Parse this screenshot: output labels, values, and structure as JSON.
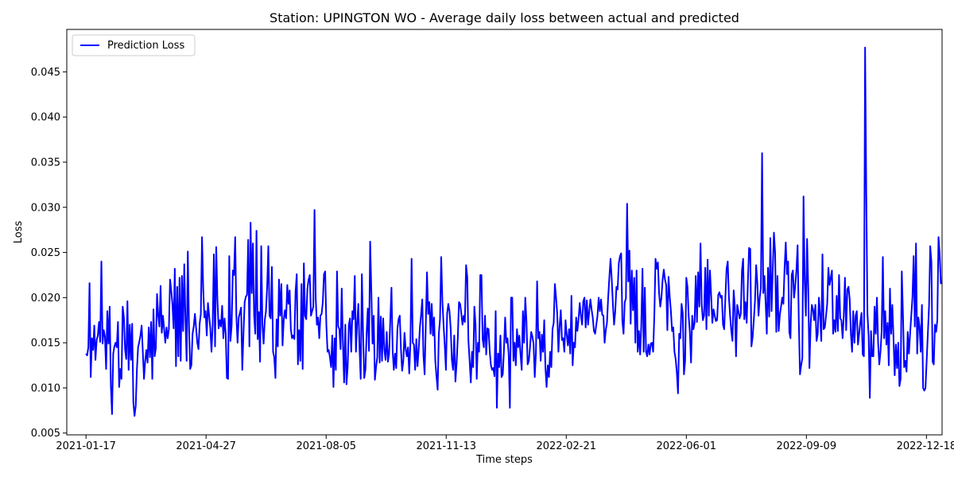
{
  "chart_data": {
    "type": "line",
    "title": "Station: UPINGTON WO - Average daily loss between actual and predicted",
    "xlabel": "Time steps",
    "ylabel": "Loss",
    "xlim": [
      "2021-01-01",
      "2022-12-31"
    ],
    "ylim": [
      0.0048,
      0.0497
    ],
    "x_ticks": [
      "2021-01-17",
      "2021-04-27",
      "2021-08-05",
      "2021-11-13",
      "2022-02-21",
      "2022-06-01",
      "2022-09-09",
      "2022-12-18"
    ],
    "y_ticks": [
      "0.005",
      "0.010",
      "0.015",
      "0.020",
      "0.025",
      "0.030",
      "0.035",
      "0.040",
      "0.045"
    ],
    "legend_position": "upper-left",
    "grid": false,
    "series": [
      {
        "name": "Prediction Loss",
        "color": "#0000ff",
        "x_start": "2021-01-17",
        "x_step_days": 1,
        "values": [
          0.0138,
          0.0136,
          0.0145,
          0.0216,
          0.0112,
          0.0155,
          0.0142,
          0.0169,
          0.0131,
          0.0153,
          0.0158,
          0.0173,
          0.0151,
          0.024,
          0.0149,
          0.0164,
          0.0157,
          0.0121,
          0.0185,
          0.0149,
          0.019,
          0.0103,
          0.0071,
          0.0138,
          0.0146,
          0.015,
          0.0145,
          0.0173,
          0.0101,
          0.0121,
          0.011,
          0.019,
          0.0178,
          0.0143,
          0.0132,
          0.0196,
          0.012,
          0.017,
          0.0131,
          0.0171,
          0.0084,
          0.0069,
          0.008,
          0.012,
          0.0145,
          0.0151,
          0.0158,
          0.0169,
          0.014,
          0.011,
          0.013,
          0.0142,
          0.0128,
          0.0167,
          0.0134,
          0.0173,
          0.011,
          0.0187,
          0.0135,
          0.0144,
          0.0204,
          0.018,
          0.0168,
          0.0213,
          0.0161,
          0.018,
          0.0165,
          0.015,
          0.0167,
          0.0155,
          0.0165,
          0.022,
          0.0208,
          0.0193,
          0.0166,
          0.0232,
          0.0124,
          0.0212,
          0.0135,
          0.0222,
          0.013,
          0.0224,
          0.0163,
          0.0237,
          0.0175,
          0.013,
          0.0251,
          0.0168,
          0.0121,
          0.0125,
          0.016,
          0.0168,
          0.0182,
          0.0166,
          0.015,
          0.0143,
          0.0171,
          0.0182,
          0.0267,
          0.021,
          0.0178,
          0.0185,
          0.0158,
          0.0194,
          0.018,
          0.0166,
          0.014,
          0.017,
          0.0248,
          0.0146,
          0.0256,
          0.0198,
          0.0166,
          0.0175,
          0.0168,
          0.0191,
          0.0155,
          0.0177,
          0.016,
          0.0111,
          0.011,
          0.0246,
          0.0152,
          0.0169,
          0.023,
          0.0225,
          0.0267,
          0.018,
          0.015,
          0.0178,
          0.0183,
          0.0189,
          0.012,
          0.016,
          0.0195,
          0.0201,
          0.0203,
          0.0264,
          0.0146,
          0.0283,
          0.0205,
          0.026,
          0.018,
          0.016,
          0.0274,
          0.0154,
          0.0184,
          0.0129,
          0.0257,
          0.017,
          0.0149,
          0.0175,
          0.0185,
          0.0212,
          0.0257,
          0.018,
          0.0177,
          0.0234,
          0.014,
          0.0134,
          0.0111,
          0.0176,
          0.0146,
          0.022,
          0.018,
          0.0215,
          0.0147,
          0.0175,
          0.0186,
          0.0177,
          0.0214,
          0.0193,
          0.0208,
          0.0165,
          0.0155,
          0.0158,
          0.0154,
          0.0207,
          0.0226,
          0.0126,
          0.0164,
          0.013,
          0.0215,
          0.0121,
          0.0238,
          0.018,
          0.0176,
          0.021,
          0.022,
          0.0225,
          0.018,
          0.0185,
          0.019,
          0.0297,
          0.02,
          0.017,
          0.0178,
          0.0155,
          0.018,
          0.0182,
          0.0195,
          0.0226,
          0.0229,
          0.017,
          0.014,
          0.0142,
          0.0134,
          0.0123,
          0.0158,
          0.0101,
          0.0155,
          0.012,
          0.0229,
          0.0168,
          0.0165,
          0.0143,
          0.021,
          0.015,
          0.0106,
          0.017,
          0.0104,
          0.0123,
          0.017,
          0.0177,
          0.014,
          0.0185,
          0.0176,
          0.0224,
          0.014,
          0.0172,
          0.0193,
          0.0144,
          0.011,
          0.0226,
          0.016,
          0.0111,
          0.012,
          0.016,
          0.0188,
          0.0141,
          0.0262,
          0.0207,
          0.0149,
          0.018,
          0.0109,
          0.0123,
          0.0134,
          0.02,
          0.0128,
          0.0179,
          0.013,
          0.0177,
          0.0142,
          0.0131,
          0.0162,
          0.0129,
          0.0138,
          0.0175,
          0.0211,
          0.0141,
          0.012,
          0.0138,
          0.0122,
          0.0165,
          0.0176,
          0.018,
          0.0143,
          0.0119,
          0.013,
          0.0161,
          0.0143,
          0.0135,
          0.0145,
          0.0116,
          0.015,
          0.0243,
          0.015,
          0.0148,
          0.012,
          0.0154,
          0.0124,
          0.0143,
          0.0167,
          0.0181,
          0.0198,
          0.0136,
          0.0115,
          0.0171,
          0.0228,
          0.0182,
          0.0195,
          0.016,
          0.0193,
          0.0158,
          0.0178,
          0.013,
          0.0113,
          0.0098,
          0.016,
          0.0176,
          0.0245,
          0.0196,
          0.017,
          0.0147,
          0.012,
          0.0182,
          0.0193,
          0.0185,
          0.0166,
          0.0131,
          0.012,
          0.0158,
          0.0107,
          0.0127,
          0.0155,
          0.0195,
          0.0193,
          0.0182,
          0.017,
          0.018,
          0.0173,
          0.0236,
          0.0223,
          0.0152,
          0.013,
          0.0106,
          0.014,
          0.0123,
          0.019,
          0.017,
          0.011,
          0.015,
          0.014,
          0.0225,
          0.0225,
          0.0154,
          0.0145,
          0.018,
          0.0137,
          0.0166,
          0.0165,
          0.014,
          0.0125,
          0.012,
          0.0122,
          0.0113,
          0.0185,
          0.0078,
          0.0138,
          0.0123,
          0.0158,
          0.0112,
          0.0115,
          0.0142,
          0.0178,
          0.015,
          0.0155,
          0.0137,
          0.0078,
          0.02,
          0.02,
          0.013,
          0.015,
          0.0125,
          0.0165,
          0.0145,
          0.0158,
          0.0137,
          0.012,
          0.0185,
          0.015,
          0.02,
          0.0174,
          0.0126,
          0.013,
          0.0145,
          0.0162,
          0.0157,
          0.0149,
          0.0112,
          0.0139,
          0.0218,
          0.0155,
          0.0162,
          0.013,
          0.0159,
          0.014,
          0.0175,
          0.0123,
          0.0101,
          0.0125,
          0.0112,
          0.014,
          0.0123,
          0.0165,
          0.0172,
          0.0215,
          0.02,
          0.0182,
          0.014,
          0.0168,
          0.0186,
          0.0153,
          0.0155,
          0.014,
          0.0175,
          0.0159,
          0.0147,
          0.0165,
          0.0138,
          0.0202,
          0.0125,
          0.015,
          0.0145,
          0.0178,
          0.0163,
          0.0176,
          0.0194,
          0.018,
          0.017,
          0.0196,
          0.02,
          0.0167,
          0.0197,
          0.017,
          0.0185,
          0.0198,
          0.0187,
          0.0178,
          0.0163,
          0.016,
          0.017,
          0.018,
          0.02,
          0.0185,
          0.0198,
          0.0181,
          0.018,
          0.015,
          0.0164,
          0.0172,
          0.02,
          0.0222,
          0.0243,
          0.0221,
          0.0193,
          0.017,
          0.0185,
          0.0212,
          0.0209,
          0.0238,
          0.0246,
          0.0249,
          0.0174,
          0.016,
          0.0195,
          0.0199,
          0.0304,
          0.0218,
          0.0252,
          0.0171,
          0.023,
          0.0186,
          0.0222,
          0.015,
          0.023,
          0.014,
          0.0163,
          0.0137,
          0.017,
          0.0232,
          0.014,
          0.0211,
          0.014,
          0.0135,
          0.0148,
          0.0137,
          0.0149,
          0.015,
          0.014,
          0.018,
          0.0243,
          0.0232,
          0.0239,
          0.0205,
          0.019,
          0.02,
          0.022,
          0.0231,
          0.022,
          0.0214,
          0.0164,
          0.0223,
          0.0201,
          0.0185,
          0.0163,
          0.0167,
          0.014,
          0.0132,
          0.0117,
          0.0094,
          0.016,
          0.0155,
          0.0193,
          0.0183,
          0.0115,
          0.013,
          0.0222,
          0.0212,
          0.018,
          0.0162,
          0.0128,
          0.018,
          0.0165,
          0.0172,
          0.0224,
          0.0173,
          0.0228,
          0.019,
          0.026,
          0.0193,
          0.0175,
          0.018,
          0.0233,
          0.0165,
          0.0242,
          0.018,
          0.023,
          0.0202,
          0.0172,
          0.0187,
          0.018,
          0.0174,
          0.0175,
          0.0203,
          0.0206,
          0.02,
          0.0202,
          0.017,
          0.0165,
          0.02,
          0.0232,
          0.024,
          0.02,
          0.018,
          0.0163,
          0.0152,
          0.0208,
          0.0189,
          0.0135,
          0.0192,
          0.0185,
          0.0177,
          0.0182,
          0.023,
          0.0243,
          0.0176,
          0.0195,
          0.0172,
          0.0216,
          0.0255,
          0.0254,
          0.0146,
          0.0156,
          0.0175,
          0.0196,
          0.0236,
          0.0216,
          0.018,
          0.02,
          0.0211,
          0.036,
          0.0205,
          0.0224,
          0.0195,
          0.016,
          0.0233,
          0.0179,
          0.0266,
          0.0185,
          0.023,
          0.0272,
          0.025,
          0.0162,
          0.0224,
          0.0163,
          0.0181,
          0.019,
          0.02,
          0.0193,
          0.0233,
          0.0261,
          0.0226,
          0.024,
          0.0162,
          0.0155,
          0.0225,
          0.023,
          0.02,
          0.0213,
          0.023,
          0.0258,
          0.0175,
          0.0115,
          0.0125,
          0.0133,
          0.0312,
          0.0218,
          0.018,
          0.0265,
          0.021,
          0.0122,
          0.017,
          0.0192,
          0.0187,
          0.0175,
          0.0192,
          0.0152,
          0.016,
          0.02,
          0.018,
          0.0152,
          0.0248,
          0.0165,
          0.0167,
          0.018,
          0.0193,
          0.0233,
          0.0214,
          0.0222,
          0.023,
          0.016,
          0.0175,
          0.0162,
          0.0202,
          0.0163,
          0.0225,
          0.0177,
          0.0175,
          0.0155,
          0.018,
          0.0222,
          0.0164,
          0.0209,
          0.0212,
          0.0198,
          0.016,
          0.014,
          0.0185,
          0.015,
          0.018,
          0.0185,
          0.0148,
          0.016,
          0.0173,
          0.0183,
          0.0137,
          0.0135,
          0.0477,
          0.0315,
          0.0182,
          0.0157,
          0.0089,
          0.0163,
          0.0135,
          0.0135,
          0.019,
          0.016,
          0.02,
          0.015,
          0.0126,
          0.014,
          0.0163,
          0.0245,
          0.0155,
          0.0185,
          0.0148,
          0.0172,
          0.0125,
          0.021,
          0.016,
          0.0192,
          0.0155,
          0.0114,
          0.0148,
          0.0122,
          0.015,
          0.0102,
          0.011,
          0.0229,
          0.018,
          0.0123,
          0.013,
          0.0118,
          0.0162,
          0.0138,
          0.016,
          0.018,
          0.02,
          0.0246,
          0.0168,
          0.026,
          0.0138,
          0.0178,
          0.0168,
          0.014,
          0.0192,
          0.01,
          0.0097,
          0.01,
          0.013,
          0.016,
          0.019,
          0.0257,
          0.024,
          0.0129,
          0.0126,
          0.017,
          0.0162,
          0.0175,
          0.0267,
          0.0248,
          0.0215
        ]
      }
    ]
  }
}
